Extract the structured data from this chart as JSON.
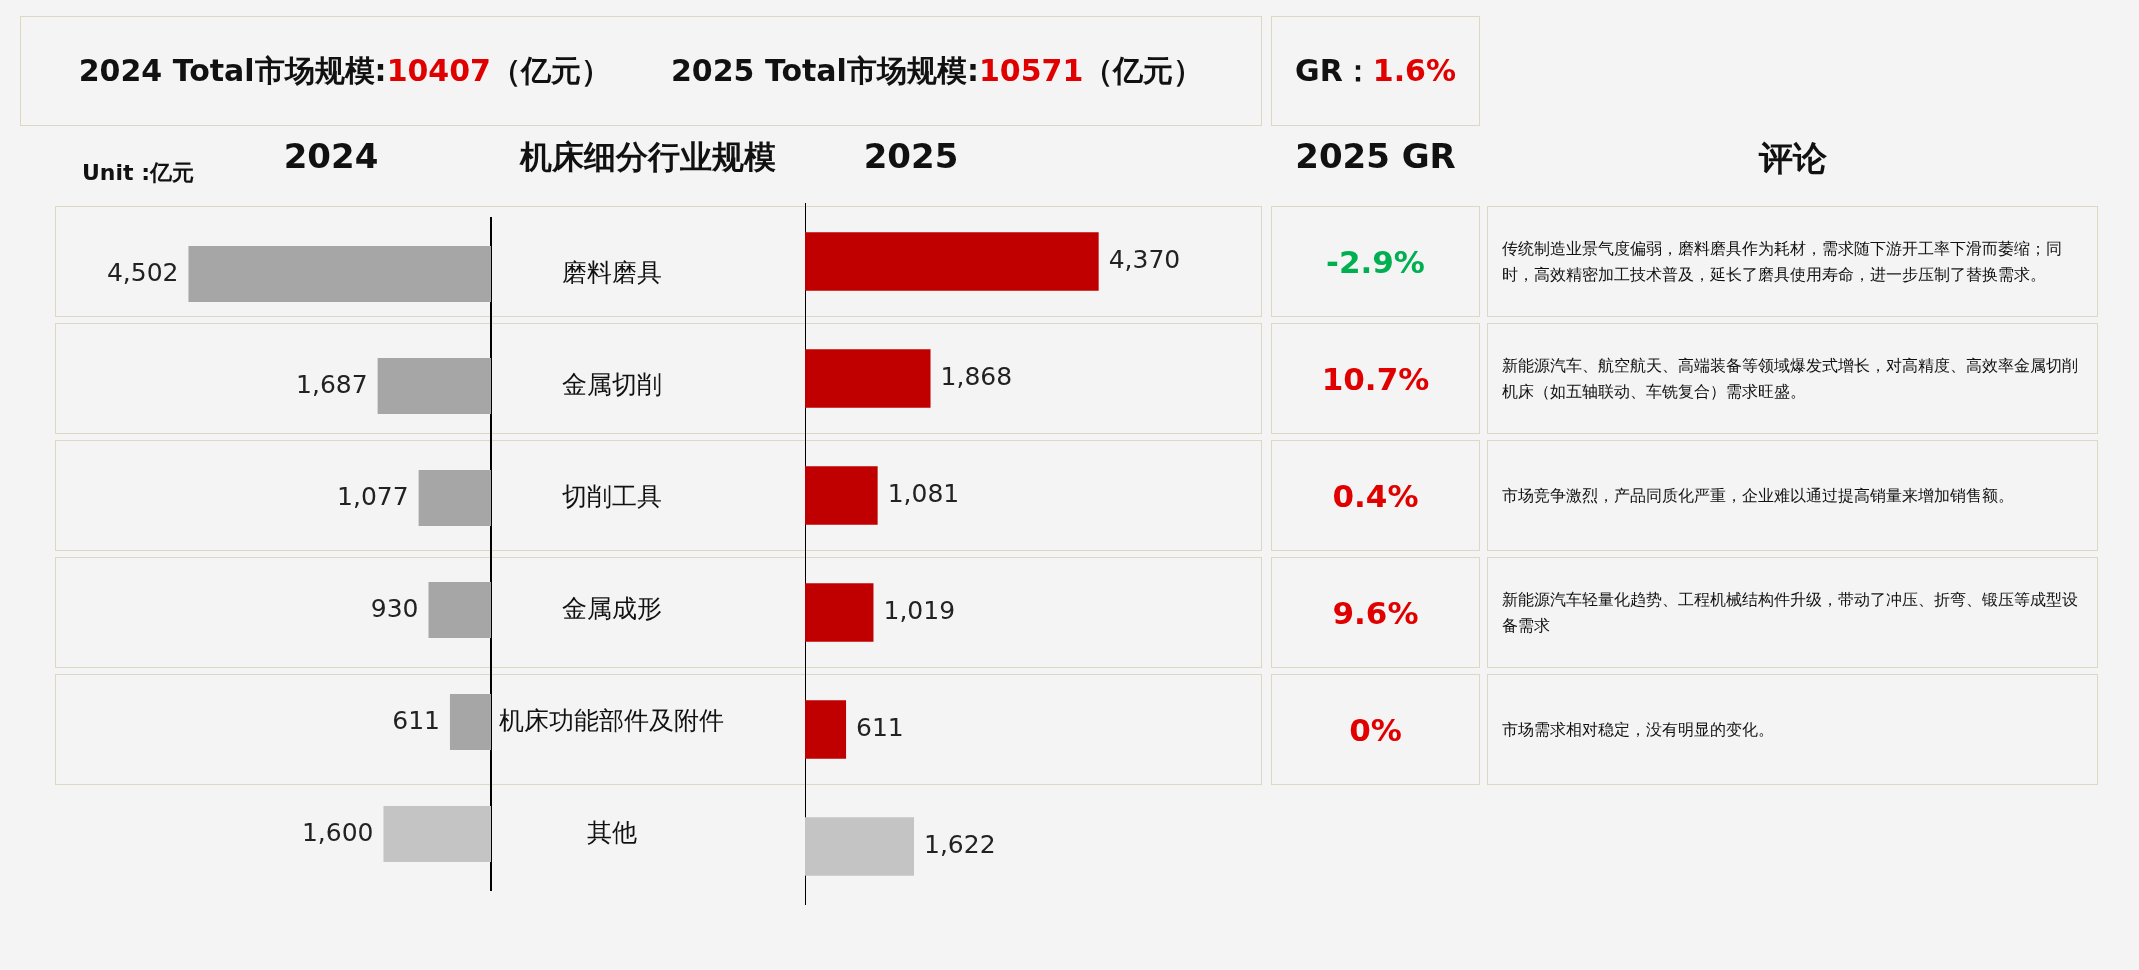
{
  "chart_data": [
    {
      "type": "other",
      "annotations": [
        "2024 Total市场规模:10407（亿元）",
        "2025 Total市场规模:10571（亿元）",
        "GR：1.6%"
      ]
    },
    {
      "type": "bar",
      "orientation": "horizontal",
      "title": "2024",
      "ylabel": "机床细分行业规模",
      "annotations": [
        "Unit :亿元"
      ],
      "categories": [
        "磨料磨具",
        "金属切削",
        "切削工具",
        "金属成形",
        "机床功能部件及附件",
        "其他"
      ],
      "values": [
        4502,
        1687,
        1077,
        930,
        611,
        1600
      ],
      "value_labels": [
        "4,502",
        "1,687",
        "1,077",
        "930",
        "611",
        "1,600"
      ],
      "colors": [
        "#a6a6a6",
        "#a6a6a6",
        "#a6a6a6",
        "#a6a6a6",
        "#a6a6a6",
        "#c4c4c4"
      ],
      "tick_labels": "y"
    },
    {
      "type": "bar",
      "orientation": "horizontal",
      "title": "2025",
      "categories": [
        null,
        null,
        null,
        null,
        null,
        null
      ],
      "values": [
        4370,
        1868,
        1081,
        1019,
        611,
        1622
      ],
      "value_labels": [
        "4,370",
        "1,868",
        "1,081",
        "1,019",
        "611",
        "1,622"
      ],
      "colors": [
        "#c00000",
        "#c00000",
        "#c00000",
        "#c00000",
        "#c00000",
        "#c4c4c4"
      ],
      "tick_labels": false
    },
    {
      "type": "other",
      "title": "2025 GR",
      "annotations": [
        "-2.9%",
        "10.7%",
        "0.4%",
        "9.6%",
        "0%"
      ]
    },
    {
      "type": "other",
      "title": "评论",
      "annotations": [
        "传统制造业景气度偏弱，磨料磨具作为耗材，需求随下游开工率下滑而萎缩；同时，高效精密加工技术普及，延长了磨具使用寿命，进一步压制了替换需求。",
        "新能源汽车、航空航天、高端装备等领域爆发式增长，对高精度、高效率金属切削机床（如五轴联动、车铣复合）需求旺盛。",
        "市场竞争激烈，产品同质化严重，企业难以通过提高销量来增加销售额。",
        "新能源汽车轻量化趋势、工程机械结构件升级，带动了冲压、折弯、锻压等成型设备需求",
        "市场需求相对稳定，没有明显的变化。"
      ]
    }
  ]
}
